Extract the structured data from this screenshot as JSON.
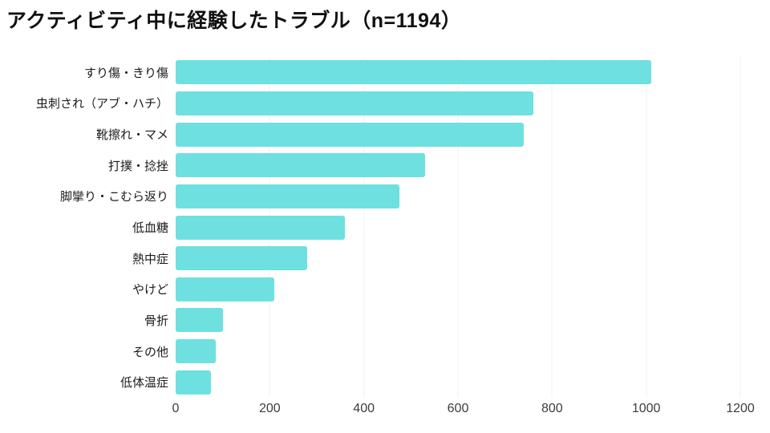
{
  "title": "アクティビティ中に経験したトラブル（n=1194）",
  "colors": {
    "bar": "#6EE0E0",
    "gridline": "#F0F0F0",
    "title_text": "#111111",
    "axis_text": "#3d3d3d",
    "category_text": "#1a1a1a",
    "background": "#ffffff"
  },
  "chart_data": {
    "type": "bar",
    "orientation": "horizontal",
    "title": "アクティビティ中に経験したトラブル（n=1194）",
    "categories": [
      "すり傷・きり傷",
      "虫刺され（アブ・ハチ）",
      "靴擦れ・マメ",
      "打撲・捻挫",
      "脚攣り・こむら返り",
      "低血糖",
      "熱中症",
      "やけど",
      "骨折",
      "その他",
      "低体温症"
    ],
    "values": [
      1010,
      760,
      740,
      530,
      475,
      360,
      280,
      210,
      100,
      85,
      75
    ],
    "xlabel": "",
    "ylabel": "",
    "xlim": [
      0,
      1200
    ],
    "xticks": [
      0,
      200,
      400,
      600,
      800,
      1000,
      1200
    ],
    "grid": "vertical-only",
    "legend": "none",
    "bar_color": "#6EE0E0",
    "gridline_color": "#F0F0F0"
  }
}
